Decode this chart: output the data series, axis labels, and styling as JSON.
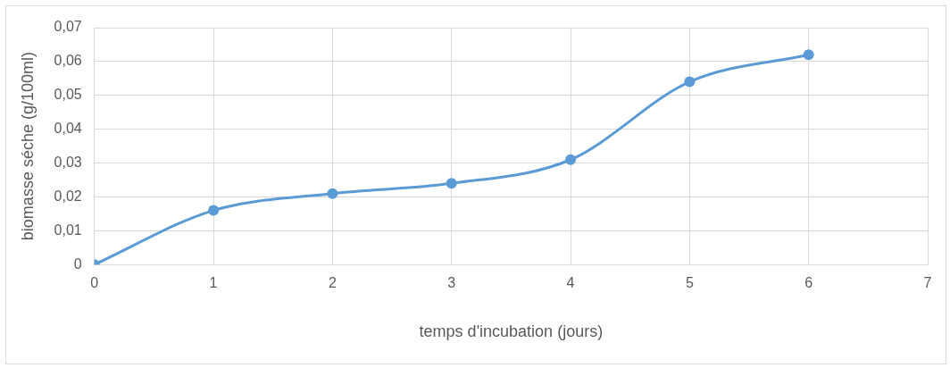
{
  "chart_data": {
    "type": "line",
    "xlabel": "temps d'incubation (jours)",
    "ylabel": "biomasse séche (g/100ml)",
    "x": [
      0,
      1,
      2,
      3,
      4,
      5,
      6
    ],
    "series": [
      {
        "color": "#5b9bd5",
        "values": [
          0,
          0.016,
          0.021,
          0.024,
          0.031,
          0.054,
          0.062
        ]
      }
    ],
    "xlim": [
      0,
      7
    ],
    "xticks": [
      0,
      1,
      2,
      3,
      4,
      5,
      6,
      7
    ],
    "ylim": [
      0,
      0.07
    ],
    "yticks": [
      0,
      {
        "value": 0.01,
        "label": "0,01"
      },
      {
        "value": 0.02,
        "label": "0,02"
      },
      {
        "value": 0.03,
        "label": "0,03"
      },
      {
        "value": 0.04,
        "label": "0,04"
      },
      {
        "value": 0.05,
        "label": "0,05"
      },
      {
        "value": 0.06,
        "label": "0,06"
      },
      {
        "value": 0.07,
        "label": "0,07"
      }
    ],
    "grid": true,
    "legend": false,
    "marker": "circle",
    "line_style": "solid"
  }
}
